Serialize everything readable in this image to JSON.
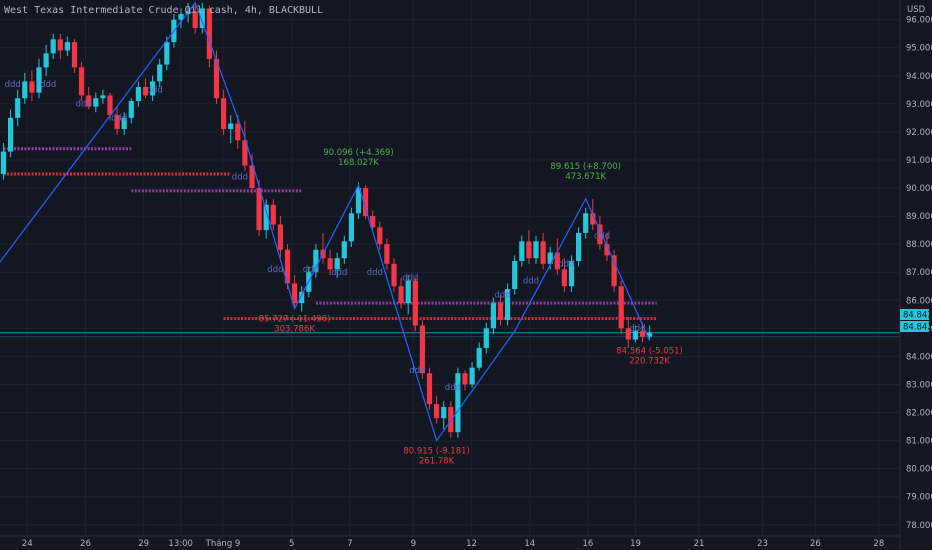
{
  "chart_data": {
    "type": "candlestick",
    "title": "West Texas Intermediate Crude Oil cash, 4h, BLACKBULL",
    "currency": "USD",
    "colors": {
      "background": "#131722",
      "grid": "#1e222d",
      "up": "#26c6da",
      "down": "#f23645",
      "zigzag": "#2962ff",
      "resistance": "#ab47bc",
      "support": "#f23645",
      "pattern": "#5c6bc0",
      "high_label": "#4caf50",
      "low_label": "#f23645",
      "price_tag": "#26c6da",
      "text": "#b2b5be"
    },
    "y_axis": {
      "range": [
        77.6,
        96.7
      ],
      "ticks": [
        "96.000",
        "95.000",
        "94.000",
        "93.000",
        "92.000",
        "91.000",
        "90.000",
        "89.000",
        "88.000",
        "87.000",
        "86.000",
        "85.000",
        "84.000",
        "83.000",
        "82.000",
        "81.000",
        "80.000",
        "79.000",
        "78.000"
      ],
      "current_price": "84.842",
      "current_price_label_2": "84.842"
    },
    "x_axis": {
      "ticks": [
        "24",
        "26",
        "29",
        "13:00",
        "Tháng 9",
        "5",
        "7",
        "9",
        "12",
        "14",
        "16",
        "19",
        "21",
        "23",
        "26",
        "28"
      ],
      "tick_slots": [
        1,
        12,
        23,
        30,
        38,
        51,
        62,
        74,
        85,
        96,
        107,
        116,
        128,
        140,
        150,
        162
      ],
      "slot_count": 166
    },
    "candles": [
      [
        90.5,
        91.6,
        90.3,
        91.3
      ],
      [
        91.3,
        92.8,
        91.1,
        92.5
      ],
      [
        92.5,
        93.5,
        92.2,
        93.2
      ],
      [
        93.2,
        94.1,
        93.0,
        93.8
      ],
      [
        93.8,
        94.2,
        93.1,
        93.4
      ],
      [
        93.4,
        94.6,
        93.2,
        94.3
      ],
      [
        94.3,
        95.1,
        94.0,
        94.8
      ],
      [
        94.8,
        95.5,
        94.6,
        95.3
      ],
      [
        95.3,
        95.5,
        94.6,
        94.9
      ],
      [
        94.9,
        95.4,
        94.7,
        95.2
      ],
      [
        95.2,
        95.3,
        94.1,
        94.3
      ],
      [
        94.3,
        94.5,
        93.1,
        93.3
      ],
      [
        93.3,
        93.6,
        92.8,
        92.9
      ],
      [
        92.9,
        93.4,
        92.7,
        93.2
      ],
      [
        93.2,
        93.5,
        93.0,
        93.3
      ],
      [
        93.3,
        93.4,
        92.4,
        92.6
      ],
      [
        92.6,
        92.9,
        91.9,
        92.1
      ],
      [
        92.1,
        92.7,
        91.9,
        92.5
      ],
      [
        92.5,
        93.2,
        92.3,
        93.1
      ],
      [
        93.1,
        93.8,
        92.9,
        93.6
      ],
      [
        93.6,
        93.9,
        93.2,
        93.3
      ],
      [
        93.3,
        94.0,
        93.1,
        93.8
      ],
      [
        93.8,
        94.6,
        93.6,
        94.4
      ],
      [
        94.4,
        95.4,
        94.2,
        95.2
      ],
      [
        95.2,
        96.2,
        95.0,
        96.0
      ],
      [
        96.0,
        96.4,
        95.7,
        96.2
      ],
      [
        96.2,
        96.6,
        95.9,
        96.3
      ],
      [
        96.3,
        96.5,
        95.5,
        95.7
      ],
      [
        95.7,
        96.6,
        95.5,
        96.4
      ],
      [
        96.4,
        96.5,
        94.3,
        94.6
      ],
      [
        94.6,
        94.9,
        93.0,
        93.2
      ],
      [
        93.2,
        93.5,
        91.9,
        92.1
      ],
      [
        92.1,
        92.6,
        91.6,
        92.3
      ],
      [
        92.3,
        92.6,
        91.4,
        91.7
      ],
      [
        91.7,
        92.4,
        90.6,
        90.8
      ],
      [
        90.8,
        91.2,
        89.8,
        90.0
      ],
      [
        90.0,
        90.3,
        88.3,
        88.5
      ],
      [
        88.5,
        89.6,
        88.2,
        89.4
      ],
      [
        89.4,
        89.6,
        88.5,
        88.7
      ],
      [
        88.7,
        89.0,
        87.5,
        87.8
      ],
      [
        87.8,
        88.0,
        86.4,
        86.6
      ],
      [
        86.6,
        86.9,
        85.7,
        85.9
      ],
      [
        85.9,
        86.5,
        85.6,
        86.3
      ],
      [
        86.3,
        87.2,
        86.1,
        87.0
      ],
      [
        87.0,
        88.0,
        86.8,
        87.8
      ],
      [
        87.8,
        88.4,
        87.3,
        87.5
      ],
      [
        87.5,
        87.8,
        86.9,
        87.1
      ],
      [
        87.1,
        87.7,
        86.8,
        87.5
      ],
      [
        87.5,
        88.3,
        87.3,
        88.1
      ],
      [
        88.1,
        89.3,
        87.9,
        89.1
      ],
      [
        89.1,
        90.2,
        88.9,
        90.0
      ],
      [
        90.0,
        90.1,
        88.9,
        89.0
      ],
      [
        89.0,
        89.2,
        88.5,
        88.6
      ],
      [
        88.6,
        88.8,
        87.8,
        88.0
      ],
      [
        88.0,
        88.2,
        87.1,
        87.3
      ],
      [
        87.3,
        87.5,
        86.3,
        86.5
      ],
      [
        86.5,
        86.8,
        85.7,
        85.9
      ],
      [
        85.9,
        86.9,
        85.5,
        86.7
      ],
      [
        86.7,
        86.8,
        84.9,
        85.1
      ],
      [
        85.1,
        85.3,
        83.2,
        83.4
      ],
      [
        83.4,
        83.6,
        82.1,
        82.3
      ],
      [
        82.3,
        82.6,
        81.6,
        81.8
      ],
      [
        81.8,
        82.4,
        81.4,
        82.2
      ],
      [
        82.2,
        82.4,
        81.1,
        81.3
      ],
      [
        81.3,
        83.6,
        81.1,
        83.4
      ],
      [
        83.4,
        83.5,
        82.8,
        83.0
      ],
      [
        83.0,
        83.8,
        82.9,
        83.6
      ],
      [
        83.6,
        84.5,
        83.5,
        84.3
      ],
      [
        84.3,
        85.2,
        84.1,
        85.0
      ],
      [
        85.0,
        86.1,
        84.8,
        85.9
      ],
      [
        85.9,
        86.2,
        85.1,
        85.3
      ],
      [
        85.3,
        86.6,
        85.1,
        86.4
      ],
      [
        86.4,
        87.6,
        86.2,
        87.4
      ],
      [
        87.4,
        88.3,
        87.2,
        88.1
      ],
      [
        88.1,
        88.5,
        87.3,
        87.5
      ],
      [
        87.5,
        88.3,
        87.3,
        88.1
      ],
      [
        88.1,
        88.4,
        87.1,
        87.3
      ],
      [
        87.3,
        87.9,
        87.1,
        87.7
      ],
      [
        87.7,
        88.2,
        86.9,
        87.1
      ],
      [
        87.1,
        87.5,
        86.3,
        86.5
      ],
      [
        86.5,
        87.6,
        86.3,
        87.4
      ],
      [
        87.4,
        88.6,
        87.2,
        88.4
      ],
      [
        88.4,
        89.3,
        88.2,
        89.1
      ],
      [
        89.1,
        89.6,
        88.5,
        88.7
      ],
      [
        88.7,
        89.0,
        87.8,
        88.0
      ],
      [
        88.0,
        88.4,
        87.4,
        87.6
      ],
      [
        87.6,
        87.8,
        86.3,
        86.5
      ],
      [
        86.5,
        86.7,
        84.8,
        85.0
      ],
      [
        85.0,
        85.4,
        84.3,
        84.6
      ],
      [
        84.6,
        85.1,
        84.5,
        84.9
      ],
      [
        84.9,
        85.2,
        84.5,
        84.7
      ],
      [
        84.7,
        85.1,
        84.6,
        84.842
      ]
    ],
    "candle_slots": [
      0,
      1,
      2,
      3,
      4,
      5,
      6,
      7,
      8,
      9,
      10,
      11,
      12,
      13,
      14,
      15,
      16,
      17,
      18,
      19,
      20,
      21,
      22,
      23,
      24,
      25,
      26,
      27,
      28,
      29,
      30,
      31,
      32,
      33,
      34,
      35,
      36,
      37,
      38,
      39,
      40,
      41,
      42,
      43,
      44,
      45,
      46,
      47,
      48,
      49,
      50,
      51,
      52,
      53,
      54,
      55,
      56,
      57,
      58,
      59,
      60,
      61,
      62,
      63,
      64,
      65,
      66,
      67,
      68,
      69,
      70,
      71,
      72,
      73,
      74,
      75,
      76,
      77,
      78,
      79,
      80,
      81,
      82,
      83,
      84,
      85,
      86,
      87,
      88,
      89,
      90,
      91
    ],
    "zigzag": [
      [
        -1,
        87.2
      ],
      [
        27,
        96.6
      ],
      [
        34,
        91.8
      ],
      [
        41,
        85.7
      ],
      [
        50,
        90.1
      ],
      [
        61,
        81.0
      ],
      [
        72,
        84.9
      ],
      [
        82,
        89.615
      ],
      [
        91,
        84.564
      ]
    ],
    "annotations": [
      {
        "kind": "high",
        "slot": 50,
        "value": "90.096 (+4.369)",
        "volume": "168.027K"
      },
      {
        "kind": "low",
        "slot": 41,
        "value": "85.727 (-11.496)",
        "volume": "303.786K"
      },
      {
        "kind": "low",
        "slot": 61,
        "value": "80.915 (-9.181)",
        "volume": "261.78K"
      },
      {
        "kind": "high",
        "slot": 82,
        "value": "89.615 (+8.700)",
        "volume": "473.671K"
      },
      {
        "kind": "low",
        "slot": 91,
        "value": "84.564 (-5.051)",
        "volume": "220.732K"
      }
    ],
    "levels": [
      {
        "kind": "resistance",
        "from": 0,
        "to": 18,
        "price": 91.4
      },
      {
        "kind": "support",
        "from": 0,
        "to": 32,
        "price": 90.5
      },
      {
        "kind": "resistance",
        "from": 18,
        "to": 42,
        "price": 89.9
      },
      {
        "kind": "resistance",
        "from": 44,
        "to": 92,
        "price": 85.9
      },
      {
        "kind": "support",
        "from": 31,
        "to": 92,
        "price": 85.35
      }
    ],
    "pattern_marks": [
      [
        1,
        93.6
      ],
      [
        6,
        93.6
      ],
      [
        11,
        92.9
      ],
      [
        16,
        92.4
      ],
      [
        21,
        93.4
      ],
      [
        33,
        90.3
      ],
      [
        38,
        87.0
      ],
      [
        43,
        87.0
      ],
      [
        47,
        86.9
      ],
      [
        52,
        86.9
      ],
      [
        57,
        86.7
      ],
      [
        58,
        83.4
      ],
      [
        63,
        82.8
      ],
      [
        70,
        86.1
      ],
      [
        74,
        86.6
      ],
      [
        79,
        87.2
      ],
      [
        84,
        88.2
      ],
      [
        89,
        84.9
      ]
    ]
  }
}
